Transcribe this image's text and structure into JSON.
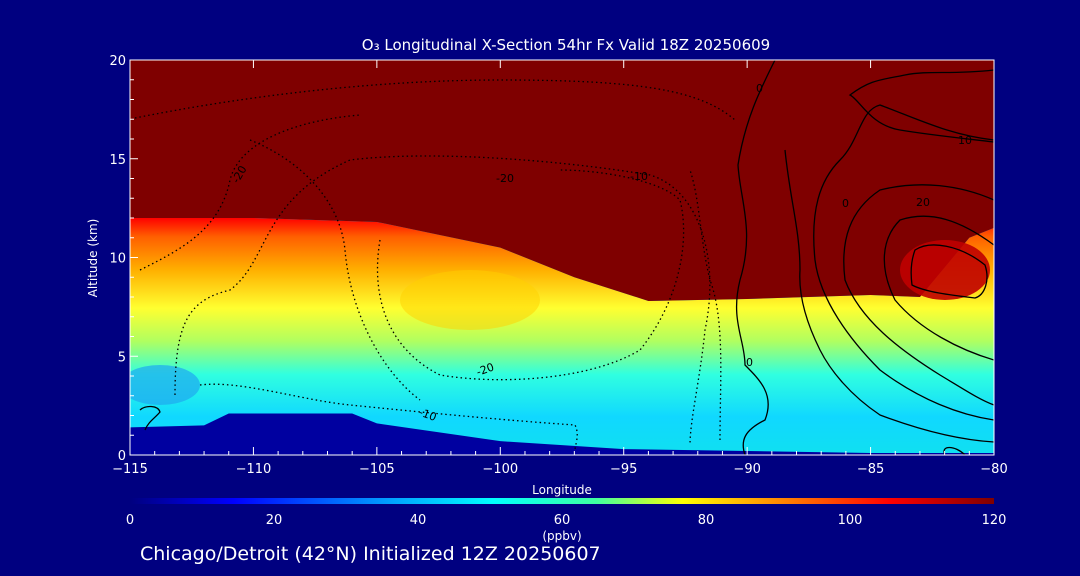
{
  "chart_data": {
    "type": "heatmap",
    "title": "O₃ Longitudinal X-Section 54hr  Fx Valid 18Z 20250609",
    "xlabel": "Longitude",
    "ylabel": "Altitude (km)",
    "xlim": [
      -115,
      -80
    ],
    "ylim": [
      0,
      20
    ],
    "x_ticks": [
      -115,
      -110,
      -105,
      -100,
      -95,
      -90,
      -85,
      -80
    ],
    "x_tick_labels": [
      "−115",
      "−110",
      "−105",
      "−100",
      "−95",
      "−90",
      "−85",
      "−80"
    ],
    "y_ticks": [
      0,
      5,
      10,
      15,
      20
    ],
    "colorbar": {
      "label": "(ppbv)",
      "range": [
        0,
        120
      ],
      "ticks": [
        0,
        20,
        40,
        60,
        80,
        100,
        120
      ],
      "colors": [
        "#00007f",
        "#0000ff",
        "#00a0ff",
        "#00ffff",
        "#40ffa0",
        "#ffff00",
        "#ff8000",
        "#ff0000",
        "#7f0000"
      ]
    },
    "ozone_field": {
      "description": "ppbv ozone; stratospheric high values above tropopause",
      "tropopause_km": [
        {
          "lon": -115,
          "alt": 12.0
        },
        {
          "lon": -110,
          "alt": 12.0
        },
        {
          "lon": -105,
          "alt": 11.8
        },
        {
          "lon": -100,
          "alt": 10.5
        },
        {
          "lon": -97,
          "alt": 9.0
        },
        {
          "lon": -94,
          "alt": 7.8
        },
        {
          "lon": -90,
          "alt": 7.9
        },
        {
          "lon": -85,
          "alt": 8.1
        },
        {
          "lon": -83,
          "alt": 8.0
        },
        {
          "lon": -81,
          "alt": 11.0
        },
        {
          "lon": -80,
          "alt": 11.5
        }
      ],
      "terrain_km": [
        {
          "lon": -115,
          "alt": 1.4
        },
        {
          "lon": -112,
          "alt": 1.5
        },
        {
          "lon": -111,
          "alt": 2.1
        },
        {
          "lon": -106,
          "alt": 2.1
        },
        {
          "lon": -105,
          "alt": 1.6
        },
        {
          "lon": -100,
          "alt": 0.7
        },
        {
          "lon": -95,
          "alt": 0.3
        },
        {
          "lon": -90,
          "alt": 0.2
        },
        {
          "lon": -85,
          "alt": 0.1
        },
        {
          "lon": -80,
          "alt": 0.1
        }
      ]
    },
    "contour_labels": [
      "-20",
      "-20",
      "-10",
      "-20",
      "-10",
      "0",
      "0",
      "0",
      "10",
      "20"
    ]
  },
  "caption": "Chicago/Detroit (42°N) Initialized 12Z 20250607"
}
